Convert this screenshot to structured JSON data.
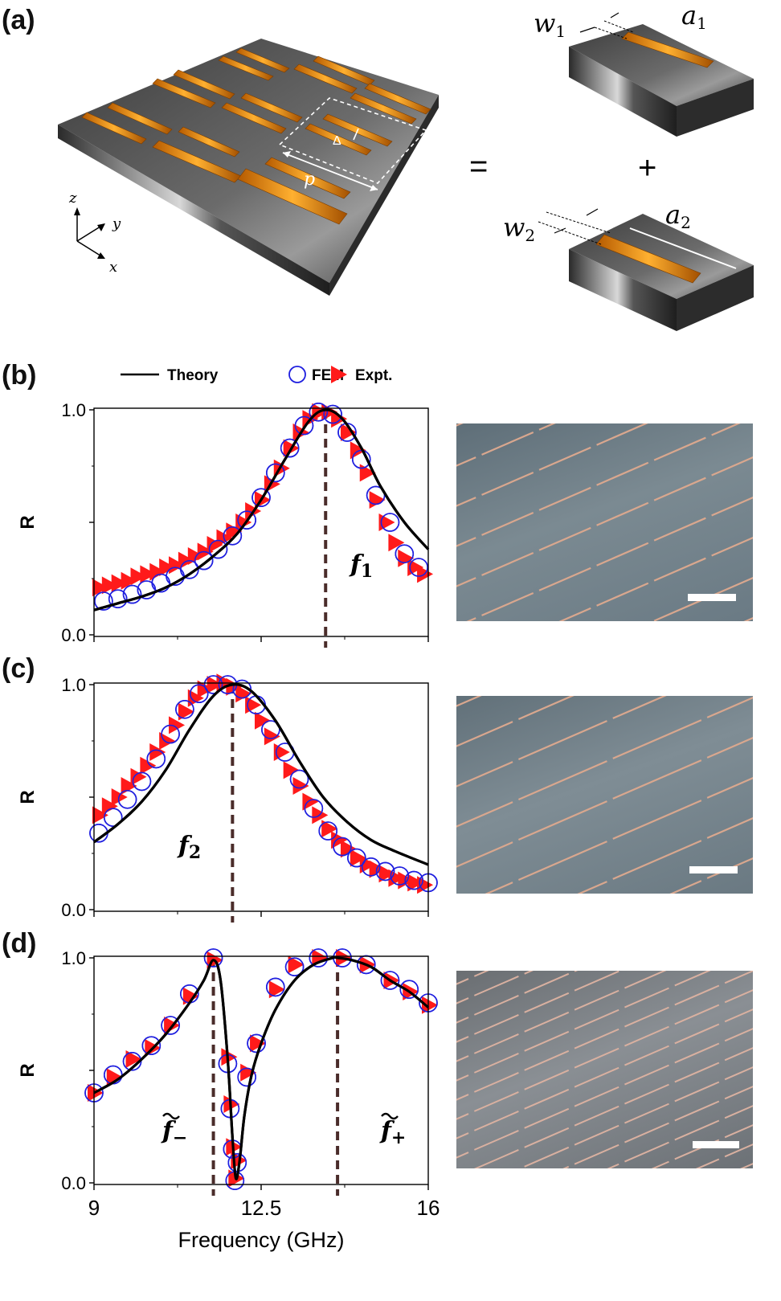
{
  "panels": {
    "a": "(a)",
    "b": "(b)",
    "c": "(c)",
    "d": "(d)"
  },
  "schematic": {
    "equals": "=",
    "plus": "+",
    "period_label": "p",
    "delta_label": "Δ",
    "axis_z": "z",
    "axis_y": "y",
    "axis_x": "x",
    "w1": "w",
    "w1_sub": "1",
    "a1": "a",
    "a1_sub": "1",
    "w2": "w",
    "w2_sub": "2",
    "a2": "a",
    "a2_sub": "2"
  },
  "legend": {
    "theory": "Theory",
    "fem": "FEM",
    "expt": "Expt."
  },
  "colors": {
    "theory": "#000000",
    "fem": "#1f1fdf",
    "expt": "#ff1a1a",
    "marker_line": "#4a2c2a"
  },
  "chart_data": [
    {
      "type": "line",
      "panel": "b",
      "ylabel": "R",
      "xlim": [
        9,
        16
      ],
      "ylim": [
        0.0,
        1.0
      ],
      "x_ticks": [
        9,
        12.5,
        16
      ],
      "y_tick_labels": [
        "0.0",
        "1.0"
      ],
      "marker_x": 13.85,
      "annotation": {
        "text": "f",
        "sub": "1"
      },
      "series": [
        {
          "name": "Theory",
          "x": [
            9,
            9.5,
            10,
            10.5,
            11,
            11.5,
            12,
            12.5,
            13,
            13.5,
            13.85,
            14.2,
            14.6,
            15,
            15.5,
            16
          ],
          "y": [
            0.11,
            0.14,
            0.17,
            0.21,
            0.27,
            0.35,
            0.45,
            0.6,
            0.78,
            0.95,
            1.0,
            0.96,
            0.83,
            0.66,
            0.5,
            0.38
          ]
        },
        {
          "name": "FEM",
          "x": [
            9.2,
            9.5,
            9.8,
            10.1,
            10.4,
            10.7,
            11.0,
            11.3,
            11.6,
            11.9,
            12.2,
            12.5,
            12.8,
            13.1,
            13.4,
            13.7,
            14.0,
            14.3,
            14.6,
            14.9,
            15.2,
            15.5,
            15.8
          ],
          "y": [
            0.15,
            0.16,
            0.18,
            0.2,
            0.23,
            0.26,
            0.29,
            0.33,
            0.38,
            0.44,
            0.51,
            0.61,
            0.72,
            0.83,
            0.93,
            0.99,
            0.98,
            0.9,
            0.78,
            0.62,
            0.5,
            0.36,
            0.3
          ]
        },
        {
          "name": "Expt.",
          "x": [
            9.1,
            9.3,
            9.5,
            9.7,
            9.9,
            10.1,
            10.3,
            10.5,
            10.7,
            10.9,
            11.1,
            11.3,
            11.5,
            11.7,
            11.9,
            12.1,
            12.3,
            12.5,
            12.7,
            12.9,
            13.1,
            13.3,
            13.5,
            13.7,
            13.9,
            14.1,
            14.3,
            14.5,
            14.7,
            14.9,
            15.1,
            15.3,
            15.5,
            15.7,
            15.9
          ],
          "y": [
            0.21,
            0.22,
            0.23,
            0.24,
            0.26,
            0.27,
            0.28,
            0.3,
            0.31,
            0.33,
            0.35,
            0.37,
            0.4,
            0.43,
            0.46,
            0.5,
            0.55,
            0.6,
            0.67,
            0.74,
            0.83,
            0.9,
            0.96,
            0.99,
            0.99,
            0.96,
            0.9,
            0.82,
            0.72,
            0.6,
            0.5,
            0.41,
            0.34,
            0.3,
            0.27
          ]
        }
      ]
    },
    {
      "type": "line",
      "panel": "c",
      "ylabel": "R",
      "xlim": [
        9,
        16
      ],
      "ylim": [
        0.0,
        1.0
      ],
      "x_ticks": [
        9,
        12.5,
        16
      ],
      "y_tick_labels": [
        "0.0",
        "1.0"
      ],
      "marker_x": 11.9,
      "annotation": {
        "text": "f",
        "sub": "2"
      },
      "series": [
        {
          "name": "Theory",
          "x": [
            9,
            9.5,
            10,
            10.5,
            11,
            11.5,
            11.9,
            12.3,
            12.8,
            13.3,
            13.8,
            14.3,
            14.8,
            15.3,
            16
          ],
          "y": [
            0.3,
            0.38,
            0.48,
            0.62,
            0.8,
            0.95,
            1.0,
            0.97,
            0.84,
            0.66,
            0.5,
            0.39,
            0.31,
            0.26,
            0.2
          ]
        },
        {
          "name": "FEM",
          "x": [
            9.1,
            9.4,
            9.7,
            10.0,
            10.3,
            10.6,
            10.9,
            11.2,
            11.5,
            11.8,
            12.1,
            12.4,
            12.7,
            13.0,
            13.3,
            13.6,
            13.9,
            14.2,
            14.5,
            14.8,
            15.1,
            15.4,
            15.7,
            16.0
          ],
          "y": [
            0.34,
            0.41,
            0.49,
            0.57,
            0.67,
            0.78,
            0.89,
            0.96,
            1.0,
            1.0,
            0.98,
            0.91,
            0.8,
            0.7,
            0.58,
            0.45,
            0.35,
            0.28,
            0.23,
            0.19,
            0.17,
            0.15,
            0.13,
            0.12
          ]
        },
        {
          "name": "Expt.",
          "x": [
            9.1,
            9.3,
            9.5,
            9.7,
            9.9,
            10.1,
            10.3,
            10.5,
            10.7,
            10.9,
            11.1,
            11.3,
            11.5,
            11.7,
            11.9,
            12.1,
            12.3,
            12.5,
            12.7,
            12.9,
            13.1,
            13.3,
            13.5,
            13.7,
            13.9,
            14.1,
            14.3,
            14.5,
            14.7,
            14.9,
            15.1,
            15.3,
            15.5,
            15.7,
            15.9
          ],
          "y": [
            0.42,
            0.46,
            0.5,
            0.55,
            0.59,
            0.64,
            0.7,
            0.75,
            0.82,
            0.88,
            0.94,
            0.98,
            1.0,
            1.01,
            0.99,
            0.96,
            0.91,
            0.84,
            0.77,
            0.7,
            0.62,
            0.55,
            0.48,
            0.42,
            0.36,
            0.31,
            0.27,
            0.23,
            0.2,
            0.18,
            0.16,
            0.14,
            0.13,
            0.12,
            0.11
          ]
        }
      ]
    },
    {
      "type": "line",
      "panel": "d",
      "ylabel": "R",
      "xlabel": "Frequency (GHz)",
      "xlim": [
        9,
        16
      ],
      "ylim": [
        0.0,
        1.0
      ],
      "x_ticks": [
        9,
        12.5,
        16
      ],
      "x_tick_labels": [
        "9",
        "12.5",
        "16"
      ],
      "y_tick_labels": [
        "0.0",
        "1.0"
      ],
      "marker_x": [
        11.5,
        14.1
      ],
      "annotations": [
        {
          "text": "f",
          "sub": "−"
        },
        {
          "text": "f",
          "sub": "+"
        }
      ],
      "series": [
        {
          "name": "Theory",
          "x": [
            9,
            9.5,
            10,
            10.5,
            11,
            11.3,
            11.5,
            11.65,
            11.8,
            11.9,
            11.97,
            12.05,
            12.15,
            12.3,
            12.5,
            12.8,
            13.2,
            13.6,
            14.0,
            14.1,
            14.4,
            14.8,
            15.2,
            15.6,
            16
          ],
          "y": [
            0.4,
            0.46,
            0.55,
            0.66,
            0.8,
            0.9,
            0.99,
            0.9,
            0.55,
            0.2,
            0.02,
            0.1,
            0.3,
            0.48,
            0.62,
            0.77,
            0.9,
            0.97,
            1.0,
            1.0,
            0.99,
            0.96,
            0.9,
            0.85,
            0.78
          ]
        },
        {
          "name": "FEM",
          "x": [
            9.0,
            9.4,
            9.8,
            10.2,
            10.6,
            11.0,
            11.5,
            11.8,
            11.85,
            11.9,
            11.95,
            12.0,
            12.2,
            12.4,
            12.8,
            13.2,
            13.7,
            14.2,
            14.7,
            15.2,
            15.6,
            16.0
          ],
          "y": [
            0.4,
            0.48,
            0.54,
            0.61,
            0.7,
            0.84,
            1.0,
            0.53,
            0.33,
            0.15,
            0.01,
            0.09,
            0.47,
            0.62,
            0.87,
            0.96,
            1.0,
            1.0,
            0.97,
            0.9,
            0.86,
            0.8
          ]
        },
        {
          "name": "Expt.",
          "x": [
            9.0,
            9.4,
            9.8,
            10.2,
            10.6,
            11.0,
            11.5,
            11.8,
            11.85,
            11.9,
            11.95,
            12.0,
            12.2,
            12.4,
            12.8,
            13.2,
            13.7,
            14.2,
            14.7,
            15.2,
            15.6,
            16.0
          ],
          "y": [
            0.4,
            0.47,
            0.55,
            0.6,
            0.7,
            0.83,
            0.99,
            0.56,
            0.35,
            0.16,
            0.02,
            0.1,
            0.49,
            0.62,
            0.86,
            0.97,
            1.0,
            1.0,
            0.97,
            0.9,
            0.85,
            0.79
          ]
        }
      ]
    }
  ]
}
